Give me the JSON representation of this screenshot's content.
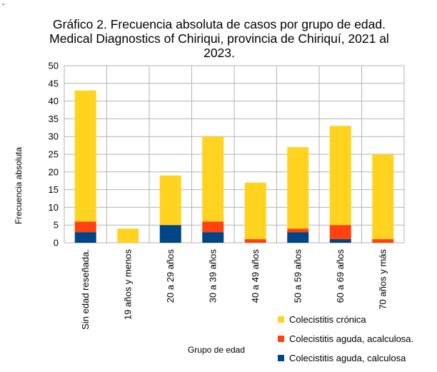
{
  "page_mark": "-",
  "chart_data": {
    "type": "bar",
    "stacked": true,
    "title": [
      "Gráfico 2. Frecuencia absoluta de casos por grupo de edad.",
      "Medical Diagnostics of Chiriqui, provincia de Chiriquí, 2021 al",
      "2023."
    ],
    "xlabel": "Grupo de edad",
    "ylabel": "Frecuencia absoluta",
    "ylim": [
      0,
      50
    ],
    "yticks": [
      "0",
      "5",
      "10",
      "15",
      "20",
      "25",
      "30",
      "35",
      "40",
      "45",
      "50"
    ],
    "grid": true,
    "legend_position": "bottom-right",
    "categories": [
      "Sin edad reseñada.",
      "19 años y menos",
      "20 a 29 años",
      "30 a 39 años",
      "40 a 49 años",
      "50 a 59 años",
      "60 a 69 años",
      "70 años y más"
    ],
    "series": [
      {
        "name": "Colecistitis aguda, calculosa",
        "color": "#004586",
        "values": [
          3,
          0,
          5,
          3,
          0,
          3,
          1,
          0
        ]
      },
      {
        "name": "Colecistitis aguda, acalculosa.",
        "color": "#ff420e",
        "values": [
          3,
          0,
          0,
          3,
          1,
          1,
          4,
          1
        ]
      },
      {
        "name": "Colecistitis crónica",
        "color": "#ffd320",
        "values": [
          37,
          4,
          14,
          24,
          16,
          23,
          28,
          24
        ]
      }
    ],
    "legend_order": [
      2,
      1,
      0
    ]
  }
}
